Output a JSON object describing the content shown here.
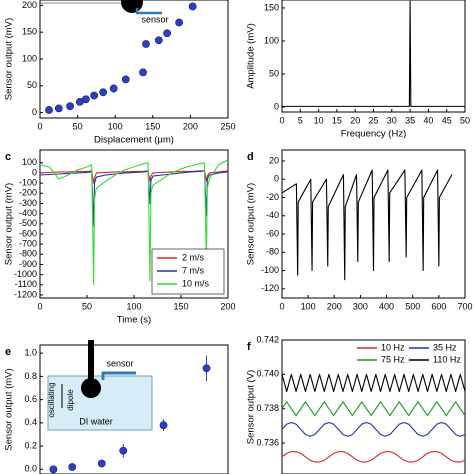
{
  "chart_data": [
    {
      "type": "scatter",
      "xlabel": "Displacement (μm)",
      "ylabel": "Sensor output (mV)",
      "x": [
        12,
        25,
        40,
        53,
        61,
        72,
        84,
        98,
        114,
        137,
        141,
        158,
        169,
        185,
        203
      ],
      "values": [
        5,
        8,
        12,
        20,
        25,
        32,
        38,
        45,
        62,
        75,
        128,
        135,
        148,
        168,
        198
      ],
      "errors": [
        2,
        2,
        2,
        2,
        2,
        3,
        3,
        8,
        3,
        3,
        5,
        4,
        3,
        3,
        3
      ],
      "color": "#2b3fc0",
      "xlim": [
        0,
        250
      ],
      "xticks": [
        0,
        50,
        100,
        150,
        200,
        250
      ],
      "ylim": [
        -10,
        210
      ],
      "yticks": [
        0,
        50,
        100,
        150,
        200
      ],
      "annotations": [
        "sensor"
      ]
    },
    {
      "type": "line",
      "xlabel": "Frequency (Hz)",
      "ylabel": "Amplitude (mV)",
      "x": [
        0,
        34.8,
        35,
        35.2,
        50
      ],
      "series": [
        {
          "color": "#000000",
          "values": [
            1,
            1,
            160,
            1,
            1
          ]
        }
      ],
      "xlim": [
        0,
        50
      ],
      "xticks": [
        0,
        5,
        10,
        15,
        20,
        25,
        30,
        35,
        40,
        45,
        50
      ],
      "ylim": [
        -7.5,
        162
      ],
      "yticks": [
        0,
        50,
        100,
        150
      ]
    },
    {
      "type": "line",
      "panel_label": "c",
      "xlabel": "Time (s)",
      "ylabel": "Sensor output (mV)",
      "x": [
        0,
        10,
        20,
        30,
        40,
        50,
        55,
        57,
        58,
        60,
        70,
        80,
        90,
        100,
        110,
        115,
        117,
        118,
        120,
        130,
        140,
        150,
        160,
        170,
        175,
        177,
        178,
        180,
        190,
        200
      ],
      "series": [
        {
          "name": "2 m/s",
          "color": "#d62728",
          "values": [
            0,
            5,
            10,
            10,
            15,
            15,
            20,
            -100,
            -50,
            0,
            5,
            10,
            10,
            15,
            15,
            20,
            -80,
            -30,
            0,
            5,
            10,
            15,
            15,
            20,
            20,
            -80,
            -30,
            0,
            10,
            20
          ]
        },
        {
          "name": "7 m/s",
          "color": "#2233aa",
          "values": [
            -20,
            -15,
            -10,
            -5,
            0,
            5,
            10,
            -520,
            -100,
            -40,
            -20,
            -10,
            0,
            5,
            10,
            15,
            -300,
            -80,
            -30,
            -20,
            -10,
            0,
            10,
            15,
            20,
            -420,
            -60,
            -20,
            0,
            10
          ]
        },
        {
          "name": "10 m/s",
          "color": "#33dd33",
          "values": [
            80,
            60,
            -60,
            -20,
            30,
            60,
            80,
            -1100,
            -250,
            -150,
            -80,
            -20,
            30,
            60,
            90,
            100,
            -1060,
            -200,
            -120,
            -60,
            0,
            40,
            70,
            90,
            100,
            -900,
            -150,
            -60,
            80,
            130
          ]
        }
      ],
      "xlim": [
        0,
        200
      ],
      "xticks": [
        0,
        50,
        100,
        150,
        200
      ],
      "ylim": [
        -1230,
        226
      ],
      "yticks": [
        100,
        0,
        -100,
        -200,
        -300,
        -400,
        -500,
        -600,
        -700,
        -800,
        -900,
        -1000,
        -1100,
        -1200
      ],
      "legend": "lower right"
    },
    {
      "type": "line",
      "panel_label": "d",
      "ylabel": "Sensor output (mV)",
      "x": [
        0,
        55,
        60,
        62,
        110,
        115,
        117,
        170,
        175,
        177,
        235,
        240,
        242,
        285,
        290,
        292,
        345,
        350,
        352,
        405,
        410,
        412,
        470,
        475,
        477,
        535,
        540,
        542,
        595,
        600,
        602,
        650
      ],
      "series": [
        {
          "color": "#000000",
          "values": [
            -15,
            -5,
            -105,
            -25,
            0,
            -100,
            -25,
            0,
            -95,
            -30,
            5,
            -110,
            -30,
            5,
            -90,
            -25,
            10,
            -100,
            -20,
            10,
            -90,
            -15,
            10,
            -85,
            -20,
            10,
            -100,
            -20,
            10,
            -95,
            -20,
            5
          ]
        }
      ],
      "xlim": [
        0,
        700
      ],
      "xticks": [
        0,
        100,
        200,
        300,
        400,
        500,
        600,
        700
      ],
      "ylim": [
        -130,
        32
      ],
      "yticks": [
        20,
        0,
        -20,
        -40,
        -60,
        -80,
        -100,
        -120
      ]
    },
    {
      "type": "scatter",
      "panel_label": "e",
      "ylabel": "Sensor output (mV)",
      "x": [
        0.5,
        1.2,
        2.3,
        3.1,
        4.6,
        6.2
      ],
      "values": [
        0.0,
        0.02,
        0.05,
        0.16,
        0.38,
        0.87
      ],
      "errors": [
        0.01,
        0.01,
        0.02,
        0.06,
        0.05,
        0.11
      ],
      "color": "#2b3fc0",
      "xlim": [
        0,
        7
      ],
      "ylim": [
        -0.04,
        1.07
      ],
      "yticks": [
        {
          "value": 0,
          "label": "0.0"
        },
        0.2,
        0.4,
        0.6,
        0.8,
        {
          "value": 1,
          "label": "1.0"
        }
      ],
      "annotations": [
        "sensor",
        "oscillating",
        "dipole",
        "DI water"
      ]
    },
    {
      "type": "line",
      "panel_label": "f",
      "ylabel": "Sensor output (V)",
      "series": [
        {
          "name": "10 Hz",
          "color": "#d62728",
          "values": [
            0.7352,
            0.7354,
            0.7355,
            0.7355,
            0.7354,
            0.7352,
            0.735,
            0.7349,
            0.7349,
            0.735,
            0.7352,
            0.7354,
            0.7355,
            0.7355,
            0.7354,
            0.7352,
            0.735,
            0.7349,
            0.7349,
            0.735,
            0.7352,
            0.7354,
            0.7355,
            0.7355,
            0.7354,
            0.7352,
            0.735,
            0.7349,
            0.7349,
            0.735,
            0.7352,
            0.7354,
            0.7355,
            0.7355,
            0.7354,
            0.7352,
            0.735,
            0.7349,
            0.7349,
            0.735
          ]
        },
        {
          "name": "35 Hz",
          "color": "#2233aa",
          "values": [
            0.7368,
            0.7371,
            0.7372,
            0.7371,
            0.7368,
            0.7365,
            0.7364,
            0.7365,
            0.7368,
            0.7371,
            0.7372,
            0.7371,
            0.7368,
            0.7365,
            0.7364,
            0.7365,
            0.7368,
            0.7371,
            0.7372,
            0.7371,
            0.7368,
            0.7365,
            0.7364,
            0.7365,
            0.7368,
            0.7371,
            0.7372,
            0.7371,
            0.7368,
            0.7365,
            0.7364,
            0.7365,
            0.7368,
            0.7371,
            0.7372,
            0.7371,
            0.7368,
            0.7365,
            0.7364,
            0.7365
          ]
        },
        {
          "name": "75 Hz",
          "color": "#1a9a1a",
          "values": [
            0.738,
            0.7384,
            0.738,
            0.7376,
            0.738,
            0.7384,
            0.738,
            0.7376,
            0.738,
            0.7384,
            0.738,
            0.7376,
            0.738,
            0.7384,
            0.738,
            0.7376,
            0.738,
            0.7384,
            0.738,
            0.7376,
            0.738,
            0.7384,
            0.738,
            0.7376,
            0.738,
            0.7384,
            0.738,
            0.7376,
            0.738,
            0.7384,
            0.738,
            0.7376,
            0.738,
            0.7384,
            0.738,
            0.7376,
            0.738,
            0.7384,
            0.738,
            0.7376
          ]
        },
        {
          "name": "110 Hz",
          "color": "#000000",
          "values": [
            0.74,
            0.739,
            0.74,
            0.739,
            0.74,
            0.739,
            0.74,
            0.739,
            0.74,
            0.739,
            0.74,
            0.739,
            0.74,
            0.739,
            0.74,
            0.739,
            0.74,
            0.739,
            0.74,
            0.739,
            0.74,
            0.739,
            0.74,
            0.739,
            0.74,
            0.739,
            0.74,
            0.739,
            0.74,
            0.739,
            0.74,
            0.739,
            0.74,
            0.739,
            0.74,
            0.739,
            0.74,
            0.739,
            0.74,
            0.739
          ]
        }
      ],
      "ylim": [
        0.7342,
        0.742
      ],
      "yticks": [
        0.736,
        0.738,
        {
          "value": 0.74,
          "label": "0.740"
        },
        0.742
      ],
      "legend": "upper center"
    }
  ]
}
